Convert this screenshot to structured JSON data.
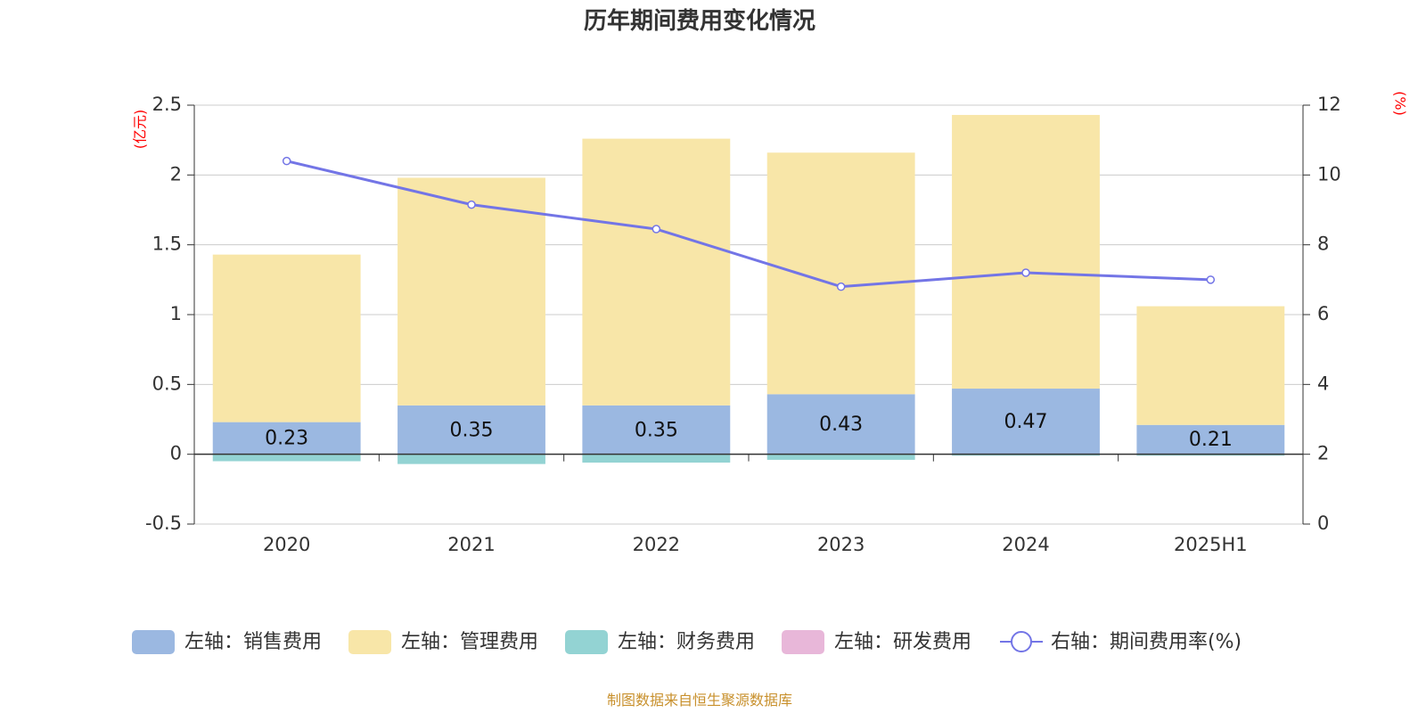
{
  "title": "历年期间费用变化情况",
  "source": "制图数据来自恒生聚源数据库",
  "chart_data": {
    "type": "bar",
    "stacked": true,
    "categories": [
      "2020",
      "2021",
      "2022",
      "2023",
      "2024",
      "2025H1"
    ],
    "left_axis": {
      "unit": "(亿元)",
      "ylim": [
        -0.5,
        2.5
      ],
      "ticks": [
        "-0.5",
        "0",
        "0.5",
        "1",
        "1.5",
        "2",
        "2.5"
      ]
    },
    "right_axis": {
      "unit": "(%)",
      "ylim": [
        0,
        12
      ],
      "ticks": [
        "0",
        "2",
        "4",
        "6",
        "8",
        "10",
        "12"
      ]
    },
    "series": [
      {
        "name": "左轴：销售费用",
        "axis": "left",
        "type": "bar",
        "color": "#9bb8e1",
        "values": [
          0.23,
          0.35,
          0.35,
          0.43,
          0.47,
          0.21
        ],
        "labels": [
          "0.23",
          "0.35",
          "0.35",
          "0.43",
          "0.47",
          "0.21"
        ]
      },
      {
        "name": "左轴：管理费用",
        "axis": "left",
        "type": "bar",
        "color": "#f8e6a8",
        "values": [
          1.2,
          1.63,
          1.91,
          1.73,
          1.96,
          0.85
        ]
      },
      {
        "name": "左轴：财务费用",
        "axis": "left",
        "type": "bar",
        "color": "#93d3d3",
        "values": [
          -0.05,
          -0.07,
          -0.06,
          -0.04,
          -0.01,
          -0.01
        ]
      },
      {
        "name": "左轴：研发费用",
        "axis": "left",
        "type": "bar",
        "color": "#e8b7d9",
        "values": [
          0,
          0,
          0,
          0,
          0,
          0
        ]
      },
      {
        "name": "右轴：期间费用率(%)",
        "axis": "right",
        "type": "line",
        "color": "#7375e6",
        "values": [
          10.4,
          9.15,
          8.45,
          6.8,
          7.2,
          7.0
        ]
      }
    ],
    "grid": true,
    "legend_position": "bottom"
  }
}
